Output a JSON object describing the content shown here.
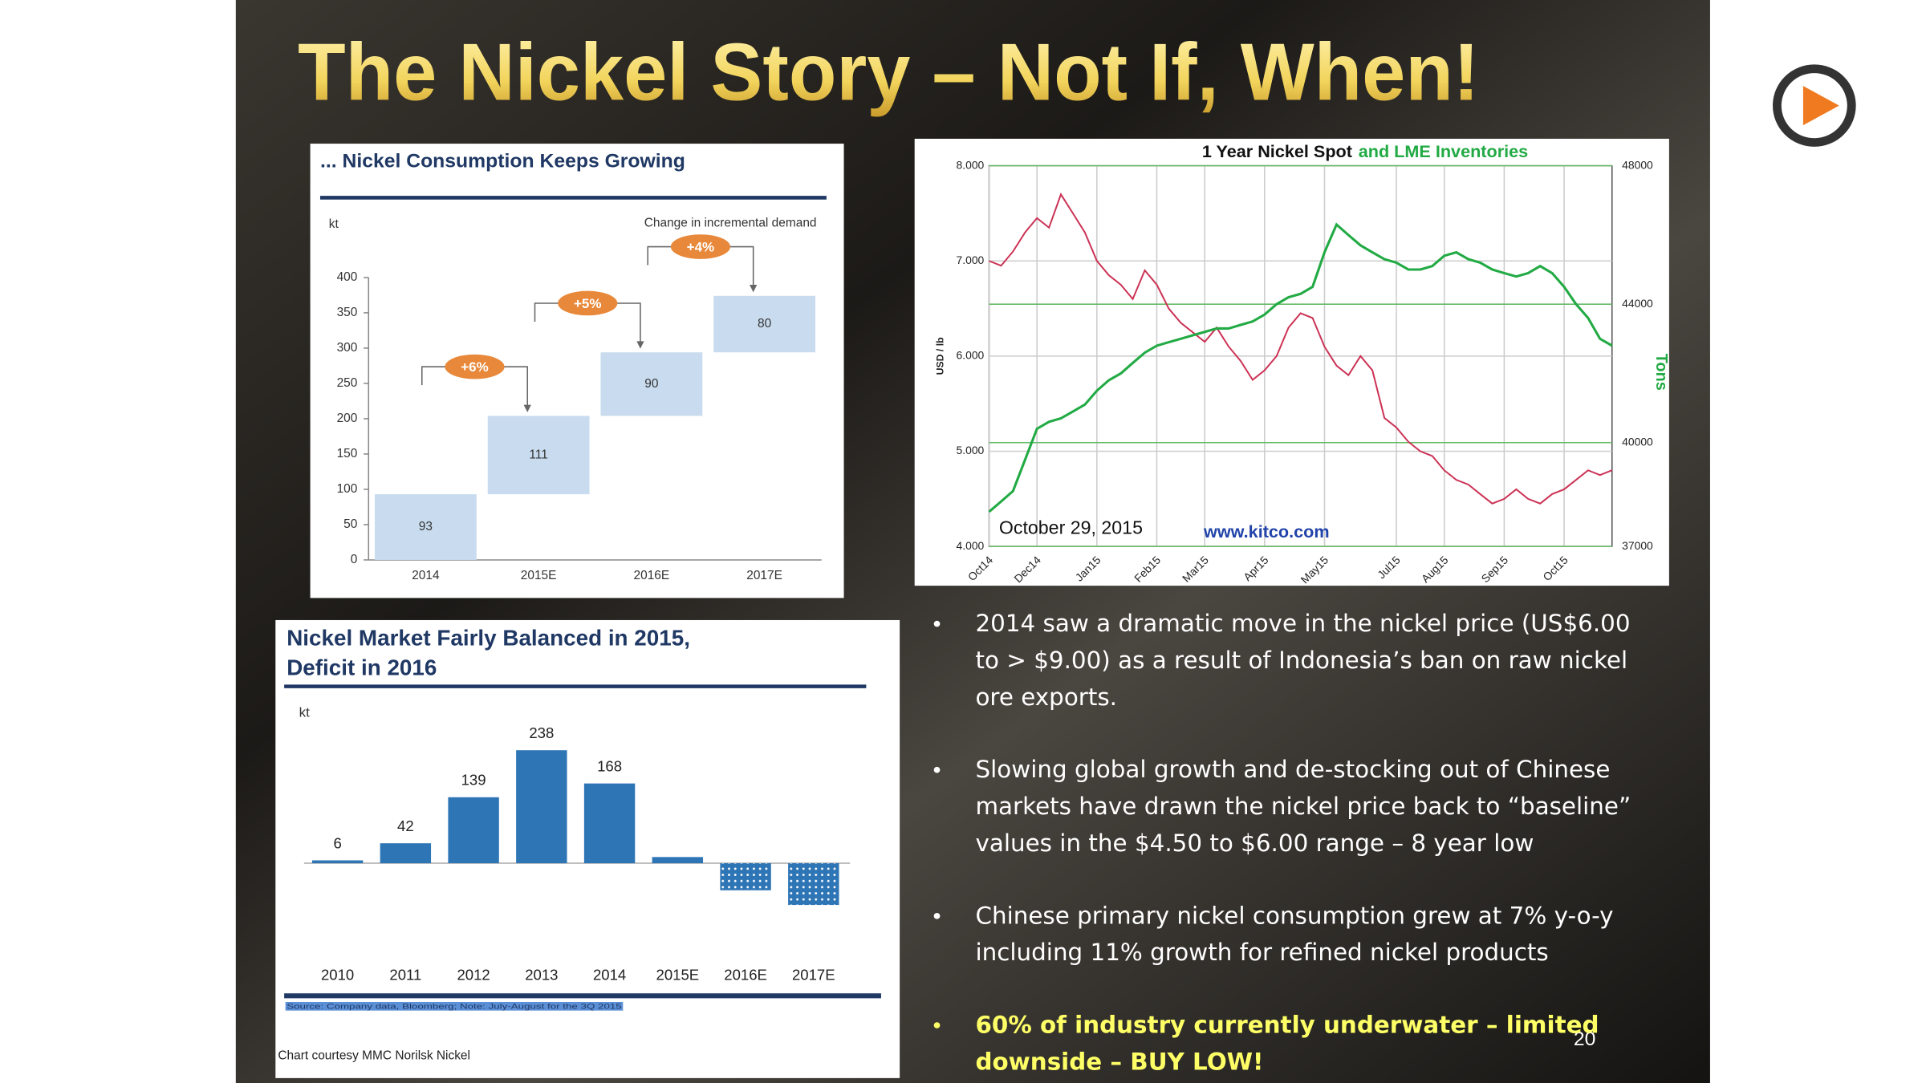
{
  "slide_title": "The Nickel Story – Not If, When!",
  "chart_data": [
    {
      "type": "waterfall",
      "title": "... Nickel Consumption Keeps Growing",
      "y_label": "kt",
      "note": "Change in incremental demand",
      "categories": [
        "2014",
        "2015E",
        "2016E",
        "2017E"
      ],
      "values": [
        93,
        111,
        90,
        80
      ],
      "annotations": [
        "+6%",
        "+5%",
        "+4%"
      ],
      "color": "#c9dcef",
      "annotation_color": "#e8883a",
      "ylim": [
        0,
        400
      ],
      "yticks": [
        0,
        50,
        100,
        150,
        200,
        250,
        300,
        350,
        400
      ]
    },
    {
      "type": "line",
      "title": [
        "1 Year Nickel Spot",
        "and LME Inventories"
      ],
      "y_label": "USD / lb",
      "y2_label": "Tons",
      "annotations": [
        "October 29, 2015",
        "www.kitco.com"
      ],
      "categories": [
        "Oct14",
        null,
        null,
        null,
        "Dec14",
        null,
        null,
        null,
        null,
        "Jan15",
        null,
        null,
        null,
        null,
        "Feb15",
        null,
        null,
        null,
        "Mar15",
        null,
        null,
        null,
        null,
        "Apr15",
        null,
        null,
        null,
        null,
        "May15",
        null,
        null,
        null,
        null,
        null,
        "Jul15",
        null,
        null,
        null,
        "Aug15",
        null,
        null,
        null,
        null,
        "Sep15",
        null,
        null,
        null,
        null,
        "Oct15",
        null,
        null,
        null,
        null
      ],
      "series": [
        {
          "color": "#cc3355",
          "values": [
            7.0,
            6.95,
            7.1,
            7.3,
            7.45,
            7.35,
            7.7,
            7.5,
            7.3,
            7.0,
            6.85,
            6.75,
            6.6,
            6.9,
            6.75,
            6.5,
            6.35,
            6.25,
            6.15,
            6.3,
            6.1,
            5.95,
            5.75,
            5.85,
            6.0,
            6.3,
            6.45,
            6.4,
            6.1,
            5.9,
            5.8,
            6.0,
            5.85,
            5.35,
            5.25,
            5.1,
            5.0,
            4.95,
            4.8,
            4.7,
            4.65,
            4.55,
            4.45,
            4.5,
            4.6,
            4.5,
            4.45,
            4.55,
            4.6,
            4.7,
            4.8,
            4.75,
            4.8
          ]
        },
        {
          "color": "#22aa44",
          "axis": "y2",
          "values": [
            38000,
            38300,
            38600,
            39500,
            40400,
            40600,
            40700,
            40900,
            41100,
            41500,
            41800,
            42000,
            42300,
            42600,
            42800,
            42900,
            43000,
            43100,
            43200,
            43300,
            43300,
            43400,
            43500,
            43700,
            44000,
            44200,
            44300,
            44500,
            45500,
            46300,
            46000,
            45700,
            45500,
            45300,
            45200,
            45000,
            45000,
            45100,
            45400,
            45500,
            45300,
            45200,
            45000,
            44900,
            44800,
            44900,
            45100,
            44900,
            44500,
            44000,
            43600,
            43000,
            42800
          ]
        }
      ],
      "ylim": [
        4,
        8
      ],
      "yticks": [
        {
          "value": 4,
          "label": "4.000"
        },
        {
          "value": 5,
          "label": "5.000"
        },
        {
          "value": 6,
          "label": "6.000"
        },
        {
          "value": 7,
          "label": "7.000"
        },
        {
          "value": 8,
          "label": "8.000"
        }
      ],
      "y2lim": [
        37000,
        48000
      ],
      "y2ticks": [
        37000,
        40000,
        44000,
        48000
      ],
      "grid": true
    },
    {
      "type": "bar",
      "title": [
        "Nickel Market Fairly Balanced in 2015,",
        "Deficit in 2016"
      ],
      "y_label": "kt",
      "categories": [
        "2010",
        "2011",
        "2012",
        "2013",
        "2014",
        "2015E",
        "2016E",
        "2017E"
      ],
      "values": [
        6,
        42,
        139,
        238,
        168,
        13,
        -57,
        -88
      ],
      "value_labels": [
        "6",
        "42",
        "139",
        "238",
        "168",
        null,
        null,
        null
      ],
      "color": "#2e75b6",
      "source": "Source: Company data, Bloomberg; Note: July-August for the 3Q 2015",
      "credit": "Chart courtesy MMC Norilsk Nickel"
    }
  ],
  "bullets": [
    {
      "color": "#ffffff",
      "lines": [
        "2014 saw a dramatic move in the nickel price (US$6.00",
        "to > $9.00) as a result of Indonesia’s ban on raw nickel",
        "ore exports."
      ]
    },
    {
      "color": "#ffffff",
      "lines": [
        "Slowing global growth and de-stocking out of Chinese",
        "markets have drawn the nickel price back to “baseline”",
        "values in the $4.50 to $6.00 range – 8 year low"
      ]
    },
    {
      "color": "#ffffff",
      "lines": [
        "Chinese primary nickel consumption grew at 7% y-o-y",
        "including 11% growth for refined nickel products"
      ]
    },
    {
      "color": "#ffff66",
      "lines": [
        "60% of industry currently underwater – limited",
        "downside – BUY LOW!"
      ]
    }
  ],
  "page_number": 20
}
